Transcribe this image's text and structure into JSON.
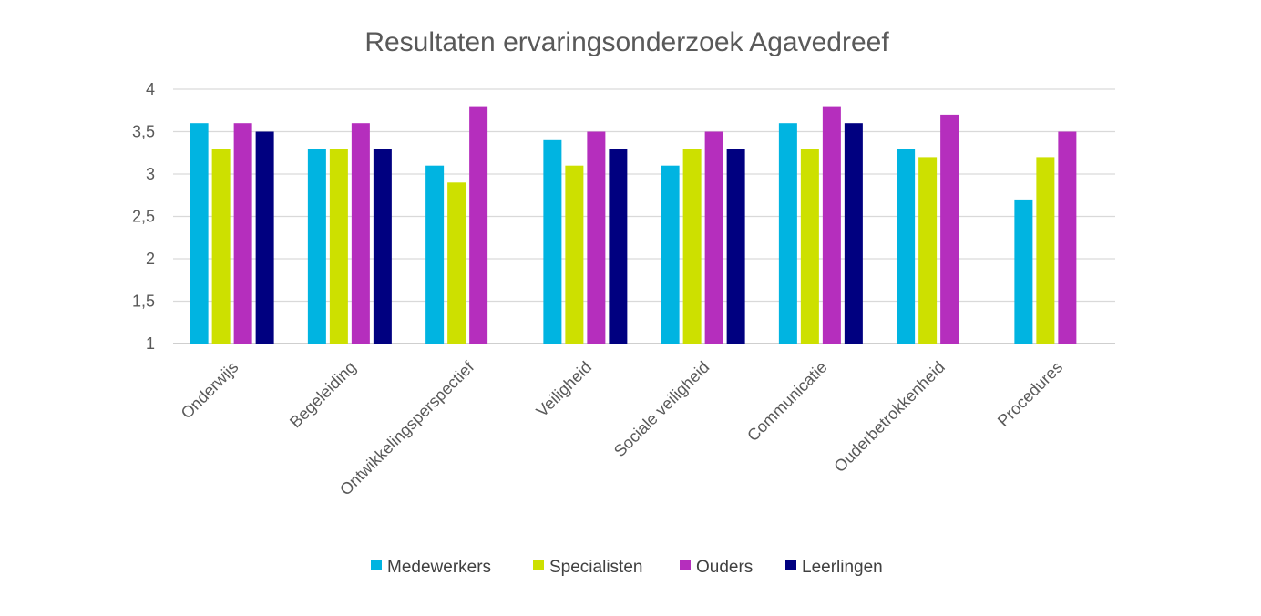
{
  "chart_data": {
    "type": "bar",
    "title": "Resultaten ervaringsonderzoek Agavedreef",
    "xlabel": "",
    "ylabel": "",
    "ylim": [
      1,
      4
    ],
    "yticks": [
      "1",
      "1,5",
      "2",
      "2,5",
      "3",
      "3,5",
      "4"
    ],
    "ytick_values": [
      1,
      1.5,
      2,
      2.5,
      3,
      3.5,
      4
    ],
    "grid": true,
    "legend_position": "bottom",
    "categories": [
      "Onderwijs",
      "Begeleiding",
      "Ontwikkelingsperspectief",
      "Veiligheid",
      "Sociale veiligheid",
      "Communicatie",
      "Ouderbetrokkenheid",
      "Procedures"
    ],
    "series": [
      {
        "name": "Medewerkers",
        "color": "#00b4e1",
        "values": [
          3.6,
          3.3,
          3.1,
          3.4,
          3.1,
          3.6,
          3.3,
          2.7
        ]
      },
      {
        "name": "Specialisten",
        "color": "#cde000",
        "values": [
          3.3,
          3.3,
          2.9,
          3.1,
          3.3,
          3.3,
          3.2,
          3.2
        ]
      },
      {
        "name": "Ouders",
        "color": "#b52ebd",
        "values": [
          3.6,
          3.6,
          3.8,
          3.5,
          3.5,
          3.8,
          3.7,
          3.5
        ]
      },
      {
        "name": "Leerlingen",
        "color": "#000080",
        "values": [
          3.5,
          3.3,
          null,
          3.3,
          3.3,
          3.6,
          null,
          null
        ]
      }
    ]
  }
}
